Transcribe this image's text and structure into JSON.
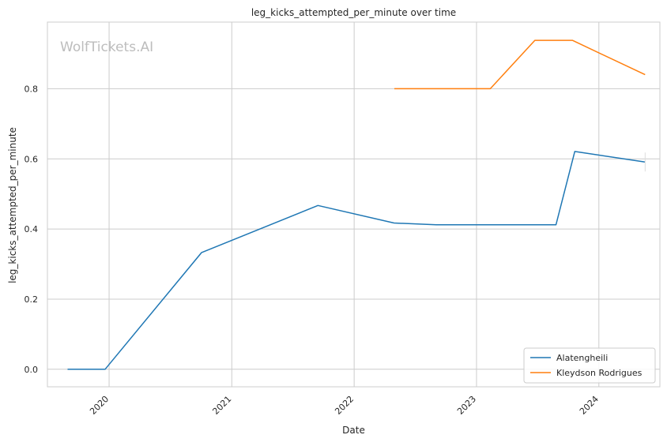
{
  "watermark": "WolfTickets.AI",
  "chart_data": {
    "type": "line",
    "title": "leg_kicks_attempted_per_minute over time",
    "xlabel": "Date",
    "ylabel": "leg_kicks_attempted_per_minute",
    "x_ticks": [
      "2020",
      "2021",
      "2022",
      "2023",
      "2024"
    ],
    "y_ticks": [
      "0.0",
      "0.2",
      "0.4",
      "0.6",
      "0.8"
    ],
    "xlim": [
      "2019-07-01",
      "2024-07-01"
    ],
    "ylim": [
      -0.05,
      0.99
    ],
    "grid": true,
    "legend_position": "bottom-right",
    "series": [
      {
        "name": "Alatengheili",
        "color": "#1f77b4",
        "points": [
          [
            "2019-08-30",
            0.0
          ],
          [
            "2019-12-20",
            0.0
          ],
          [
            "2020-10-03",
            0.333
          ],
          [
            "2021-09-15",
            0.467
          ],
          [
            "2022-04-30",
            0.417
          ],
          [
            "2022-09-03",
            0.412
          ],
          [
            "2023-08-26",
            0.412
          ],
          [
            "2023-10-21",
            0.621
          ],
          [
            "2024-05-18",
            0.591
          ]
        ]
      },
      {
        "name": "Kleydson Rodrigues",
        "color": "#ff7f0e",
        "points": [
          [
            "2022-05-01",
            0.8
          ],
          [
            "2023-02-11",
            0.8
          ],
          [
            "2023-06-24",
            0.938
          ],
          [
            "2023-10-14",
            0.938
          ],
          [
            "2024-05-18",
            0.84
          ]
        ]
      }
    ]
  }
}
